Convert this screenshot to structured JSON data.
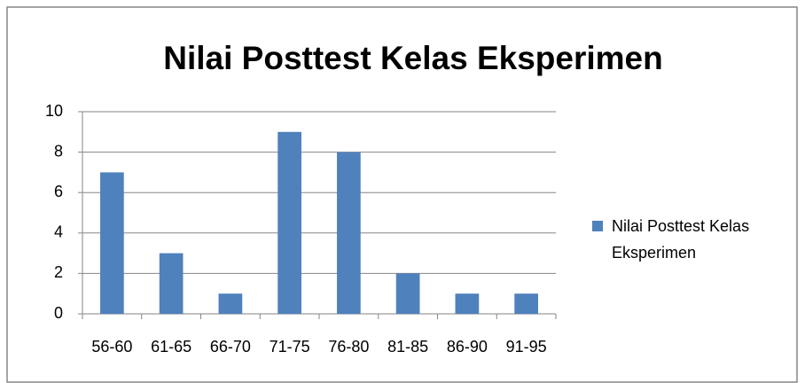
{
  "chart_data": {
    "type": "bar",
    "title": "Nilai Posttest Kelas Eksperimen",
    "categories": [
      "56-60",
      "61-65",
      "66-70",
      "71-75",
      "76-80",
      "81-85",
      "86-90",
      "91-95"
    ],
    "series": [
      {
        "name": "Nilai Posttest Kelas Eksperimen",
        "color": "#4f81bd",
        "values": [
          7,
          3,
          1,
          9,
          8,
          2,
          1,
          1
        ]
      }
    ],
    "ylim": [
      0,
      10
    ],
    "yticks": [
      0,
      2,
      4,
      6,
      8,
      10
    ],
    "grid": true,
    "legend": "right"
  }
}
